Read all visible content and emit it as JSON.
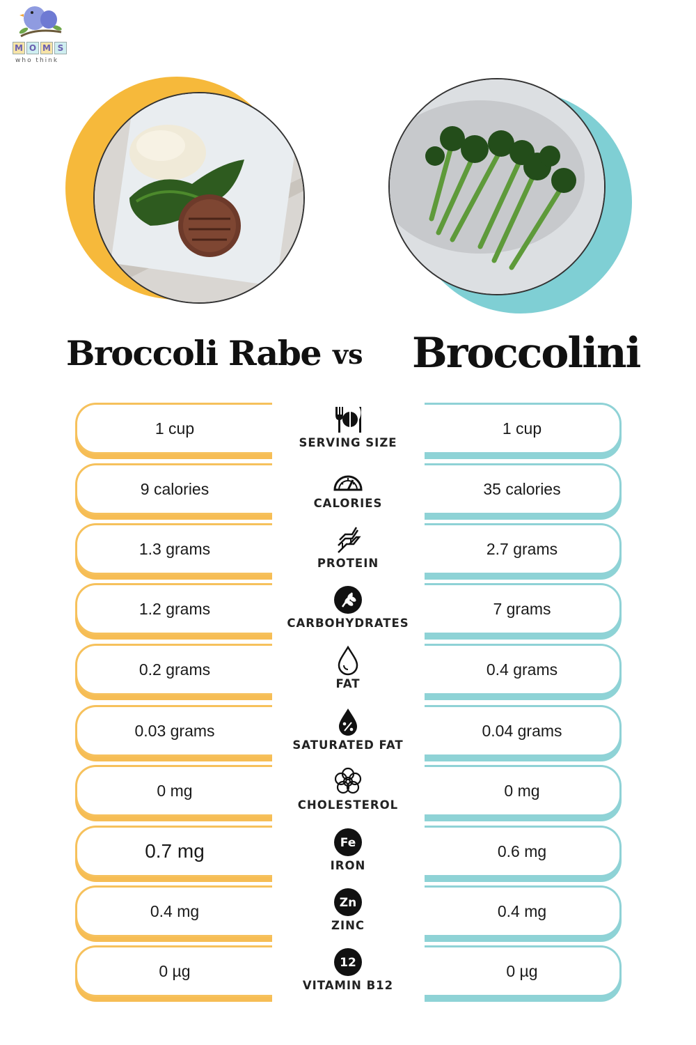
{
  "logo": {
    "letters": [
      "M",
      "O",
      "M",
      "S"
    ],
    "tagline": "who think",
    "colors": [
      "#f6c15c",
      "#8fd2d6",
      "#f6c15c",
      "#8fd2d6"
    ]
  },
  "left_food": {
    "title": "Broccoli Rabe",
    "accent": "#f6b93b",
    "image": "plate-steak-rabe-image"
  },
  "vs_label": "vs",
  "right_food": {
    "title": "Broccolini",
    "accent": "#7fcfd4",
    "image": "broccolini-image"
  },
  "rows": [
    {
      "label": "SERVING SIZE",
      "icon": "utensils-icon",
      "left": "1 cup",
      "right": "1 cup"
    },
    {
      "label": "CALORIES",
      "icon": "gauge-icon",
      "left": "9 calories",
      "right": "35 calories"
    },
    {
      "label": "PROTEIN",
      "icon": "dna-icon",
      "left": "1.3 grams",
      "right": "2.7 grams"
    },
    {
      "label": "CARBOHYDRATES",
      "icon": "grain-icon",
      "left": "1.2 grams",
      "right": "7 grams"
    },
    {
      "label": "FAT",
      "icon": "drop-icon",
      "left": "0.2 grams",
      "right": "0.4 grams"
    },
    {
      "label": "SATURATED FAT",
      "icon": "percent-drop-icon",
      "left": "0.03 grams",
      "right": "0.04 grams"
    },
    {
      "label": "CHOLESTEROL",
      "icon": "flower-icon",
      "left": "0 mg",
      "right": "0 mg"
    },
    {
      "label": "IRON",
      "icon": "fe-badge-icon",
      "badge": "Fe",
      "left": "0.7 mg",
      "right": "0.6 mg"
    },
    {
      "label": "ZINC",
      "icon": "zn-badge-icon",
      "badge": "Zn",
      "left": "0.4 mg",
      "right": "0.4 mg"
    },
    {
      "label": "VITAMIN B12",
      "icon": "b12-badge-icon",
      "badge": "12",
      "left": "0 µg",
      "right": "0 µg"
    }
  ]
}
